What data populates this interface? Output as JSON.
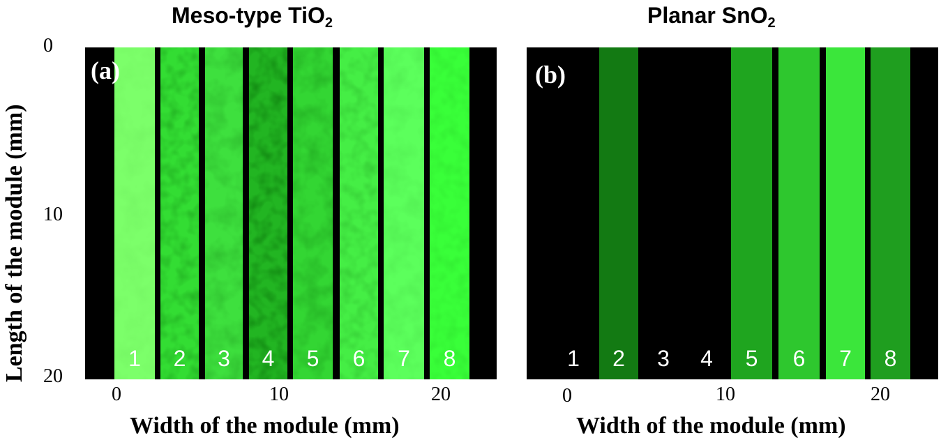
{
  "figure": {
    "y_axis_label": "Length of the module (mm)",
    "y_ticks": [
      "0",
      "10",
      "20"
    ],
    "panels": [
      {
        "label": "(a)",
        "title_main": "Meso-type TiO",
        "title_sub": "2",
        "x_axis_label": "Width of the module (mm)",
        "x_ticks": [
          "0",
          "10",
          "20"
        ],
        "cells": [
          {
            "number": "1",
            "brightness": 1.0,
            "color": "#7CFF6A"
          },
          {
            "number": "2",
            "brightness": 0.75,
            "color": "#33DD33"
          },
          {
            "number": "3",
            "brightness": 0.8,
            "color": "#3EE03E"
          },
          {
            "number": "4",
            "brightness": 0.6,
            "color": "#22B522"
          },
          {
            "number": "5",
            "brightness": 0.75,
            "color": "#33D633"
          },
          {
            "number": "6",
            "brightness": 0.85,
            "color": "#45EE45"
          },
          {
            "number": "7",
            "brightness": 0.95,
            "color": "#5CFF5C"
          },
          {
            "number": "8",
            "brightness": 0.95,
            "color": "#39FF39"
          }
        ]
      },
      {
        "label": "(b)",
        "title_main": "Planar SnO",
        "title_sub": "2",
        "x_axis_label": "Width of the module (mm)",
        "x_ticks": [
          "0",
          "10",
          "20"
        ],
        "cells": [
          {
            "number": "1",
            "brightness": 0.0,
            "color": "#000000"
          },
          {
            "number": "2",
            "brightness": 0.4,
            "color": "#137A13"
          },
          {
            "number": "3",
            "brightness": 0.0,
            "color": "#000000"
          },
          {
            "number": "4",
            "brightness": 0.0,
            "color": "#000000"
          },
          {
            "number": "5",
            "brightness": 0.6,
            "color": "#1FA51F"
          },
          {
            "number": "6",
            "brightness": 0.75,
            "color": "#2EC72E"
          },
          {
            "number": "7",
            "brightness": 0.85,
            "color": "#3BE63B"
          },
          {
            "number": "8",
            "brightness": 0.55,
            "color": "#1F9E1F"
          }
        ]
      }
    ]
  }
}
